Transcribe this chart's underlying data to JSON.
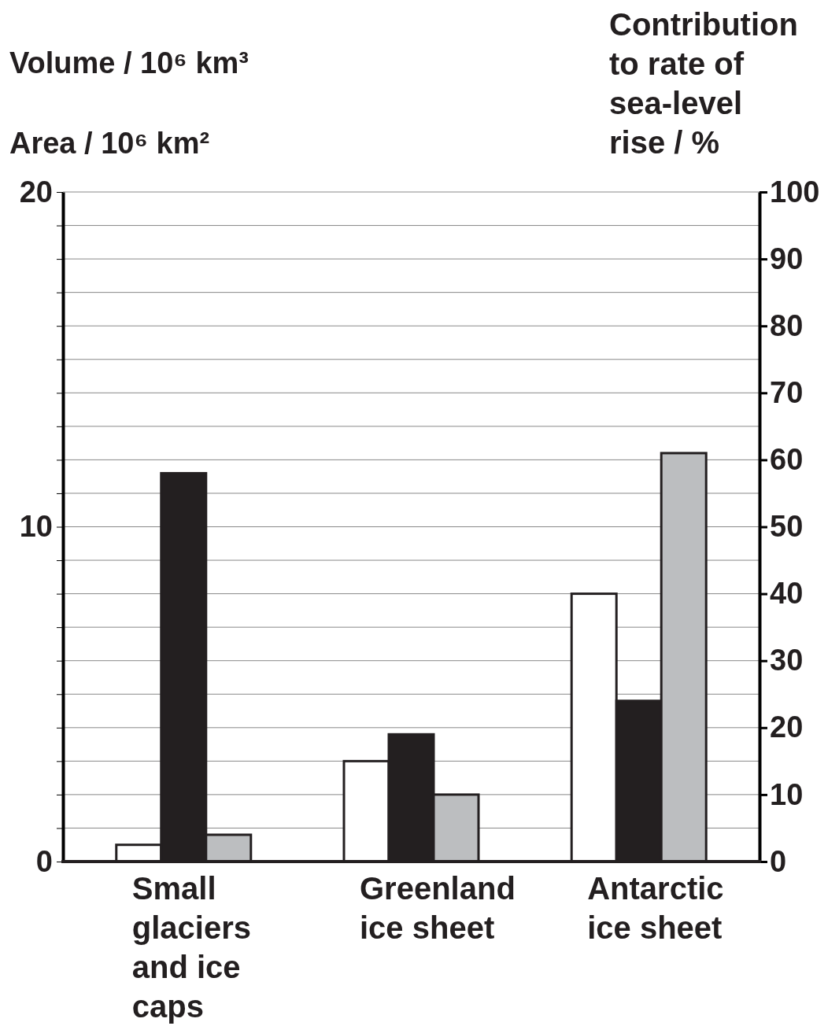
{
  "chart_data": {
    "type": "bar",
    "categories": [
      "Small glaciers and ice caps",
      "Greenland ice sheet",
      "Antarctic ice sheet"
    ],
    "series": [
      {
        "color": "#ffffff",
        "values": [
          0.5,
          3.0,
          8.0
        ]
      },
      {
        "color": "#231f20",
        "values": [
          11.6,
          3.8,
          4.8
        ]
      },
      {
        "color": "#bcbec0",
        "values": [
          4,
          10,
          61
        ],
        "axis": "y2"
      }
    ],
    "ylabel": "Volume / 10⁶ km³",
    "annotations": [
      "Area / 10⁶ km²"
    ],
    "y2label": "Contribution to rate of sea-level rise / %",
    "ylim": [
      0,
      20
    ],
    "yticks": [
      0,
      {
        "value": 1,
        "label": null
      },
      {
        "value": 2,
        "label": null
      },
      {
        "value": 3,
        "label": null
      },
      {
        "value": 4,
        "label": null
      },
      {
        "value": 5,
        "label": null
      },
      {
        "value": 6,
        "label": null
      },
      {
        "value": 7,
        "label": null
      },
      {
        "value": 8,
        "label": null
      },
      {
        "value": 9,
        "label": null
      },
      10,
      {
        "value": 11,
        "label": null
      },
      {
        "value": 12,
        "label": null
      },
      {
        "value": 13,
        "label": null
      },
      {
        "value": 14,
        "label": null
      },
      {
        "value": 15,
        "label": null
      },
      {
        "value": 16,
        "label": null
      },
      {
        "value": 17,
        "label": null
      },
      {
        "value": 18,
        "label": null
      },
      {
        "value": 19,
        "label": null
      },
      20
    ],
    "y2lim": [
      0,
      100
    ],
    "y2ticks": [
      0,
      10,
      20,
      30,
      40,
      50,
      60,
      70,
      80,
      90,
      100
    ],
    "grid": "y"
  }
}
